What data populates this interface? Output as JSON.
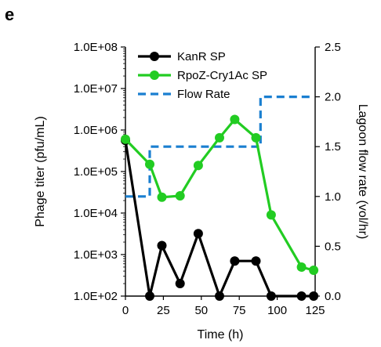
{
  "panel_label": "e",
  "chart_data": {
    "type": "line",
    "xlabel": "Time (h)",
    "ylabel_left": "Phage titer (pfu/mL)",
    "ylabel_right": "Lagoon flow rate (vol/hr)",
    "xlim": [
      0,
      125
    ],
    "x_ticks": [
      0,
      25,
      50,
      75,
      100,
      125
    ],
    "y_left_scale": "log",
    "y_left_lim": [
      100,
      100000000
    ],
    "y_left_ticks": [
      {
        "value": 100,
        "label": "1.0E+02"
      },
      {
        "value": 1000,
        "label": "1.0E+03"
      },
      {
        "value": 10000,
        "label": "1.0E+04"
      },
      {
        "value": 100000,
        "label": "1.0E+05"
      },
      {
        "value": 1000000,
        "label": "1.0E+06"
      },
      {
        "value": 10000000,
        "label": "1.0E+07"
      },
      {
        "value": 100000000,
        "label": "1.0E+08"
      }
    ],
    "y_right_lim": [
      0,
      2.5
    ],
    "y_right_ticks": [
      {
        "value": 0,
        "label": "0.0"
      },
      {
        "value": 0.5,
        "label": "0.5"
      },
      {
        "value": 1,
        "label": "1.0"
      },
      {
        "value": 1.5,
        "label": "1.5"
      },
      {
        "value": 2,
        "label": "2.0"
      },
      {
        "value": 2.5,
        "label": "2.5"
      }
    ],
    "grid": false,
    "legend_position": "top-left",
    "series": [
      {
        "name": "KanR SP",
        "color": "#000000",
        "axis": "left",
        "style": "line-markers",
        "x": [
          0,
          16,
          24,
          36,
          48,
          62,
          72,
          86,
          96,
          116,
          124
        ],
        "y": [
          560000,
          100,
          1650,
          200,
          3200,
          100,
          700,
          700,
          100,
          100,
          100
        ]
      },
      {
        "name": "RpoZ-Cry1Ac SP",
        "color": "#22cc22",
        "axis": "left",
        "style": "line-markers",
        "x": [
          0,
          16,
          24,
          36,
          48,
          62,
          72,
          86,
          96,
          116,
          124
        ],
        "y": [
          600000,
          150000,
          24000,
          26000,
          140000,
          650000,
          1800000,
          650000,
          9000,
          500,
          420
        ]
      },
      {
        "name": "Flow Rate",
        "color": "#1a7fd0",
        "axis": "right",
        "style": "dashed-step",
        "x": [
          0,
          16,
          16,
          89,
          89,
          124
        ],
        "y": [
          1.0,
          1.0,
          1.5,
          1.5,
          2.0,
          2.0
        ]
      }
    ]
  }
}
